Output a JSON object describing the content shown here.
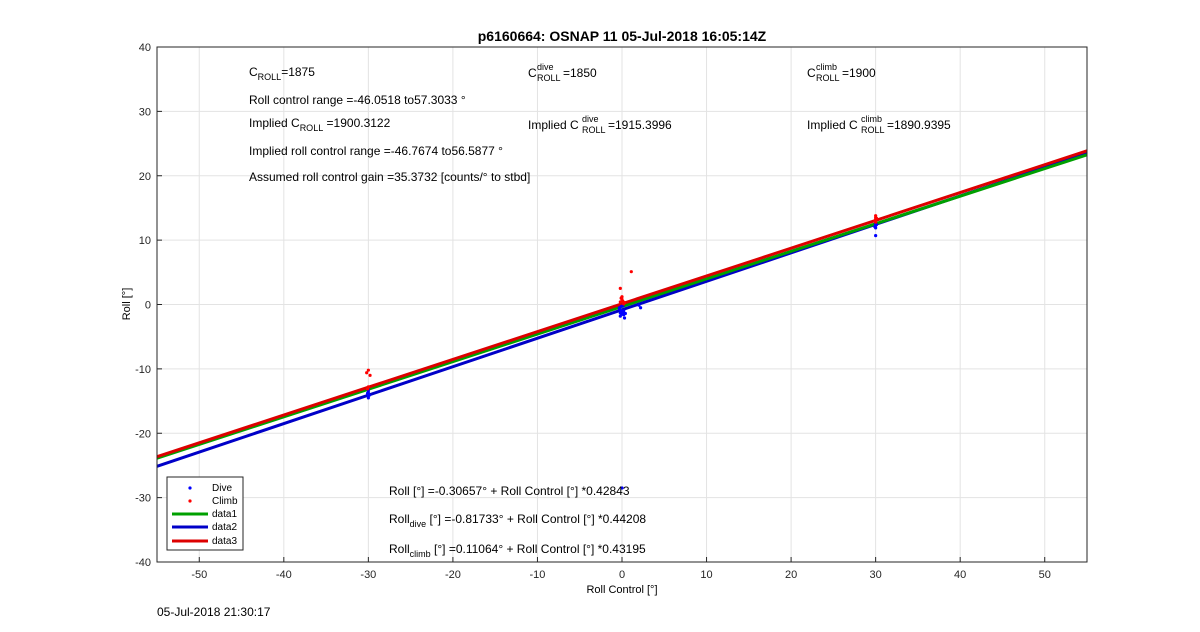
{
  "chart_data": {
    "type": "scatter",
    "title": "p6160664: OSNAP 11 05-Jul-2018 16:05:14Z",
    "xlabel": "Roll Control [°]",
    "ylabel": "Roll [°]",
    "xlim": [
      -55,
      55
    ],
    "ylim": [
      -40,
      40
    ],
    "xticks": [
      -50,
      -40,
      -30,
      -20,
      -10,
      0,
      10,
      20,
      30,
      40,
      50
    ],
    "yticks": [
      -40,
      -30,
      -20,
      -10,
      0,
      10,
      20,
      30,
      40
    ],
    "grid": true,
    "legend_position": "bottom-left",
    "legend": [
      {
        "label": "Dive",
        "kind": "marker",
        "color": "#0000ff"
      },
      {
        "label": "Climb",
        "kind": "marker",
        "color": "#ff0000"
      },
      {
        "label": "data1",
        "kind": "line",
        "color": "#00a000"
      },
      {
        "label": "data2",
        "kind": "line",
        "color": "#0000c8"
      },
      {
        "label": "data3",
        "kind": "line",
        "color": "#dd0000"
      }
    ],
    "series": [
      {
        "name": "Dive",
        "kind": "scatter",
        "color": "#0000ff",
        "points": [
          [
            -30,
            -13.3
          ],
          [
            -30,
            -13.6
          ],
          [
            -30,
            -13.9
          ],
          [
            -30,
            -14.2
          ],
          [
            -30,
            -14.5
          ],
          [
            -30.1,
            -13.8
          ],
          [
            -29.9,
            -14.1
          ],
          [
            -0.3,
            -0.5
          ],
          [
            -0.1,
            -0.9
          ],
          [
            0.1,
            -1.2
          ],
          [
            0,
            -1.5
          ],
          [
            -0.2,
            -1.8
          ],
          [
            0.3,
            -2.1
          ],
          [
            -0.3,
            -0.7
          ],
          [
            0.2,
            -1.0
          ],
          [
            0.4,
            -1.4
          ],
          [
            -0.1,
            -0.3
          ],
          [
            0,
            -1.1
          ],
          [
            0.2,
            -1.6
          ],
          [
            0.1,
            -0.2
          ],
          [
            -0.2,
            -1.3
          ],
          [
            2,
            -0.1
          ],
          [
            2.2,
            -0.5
          ],
          [
            0,
            -28.5
          ],
          [
            30,
            11.9
          ],
          [
            30,
            12.3
          ],
          [
            30,
            12.6
          ],
          [
            30,
            10.7
          ],
          [
            29.9,
            12.1
          ],
          [
            30.1,
            12.4
          ]
        ]
      },
      {
        "name": "Climb",
        "kind": "scatter",
        "color": "#ff0000",
        "points": [
          [
            -30,
            -10.2
          ],
          [
            -30.2,
            -10.6
          ],
          [
            -29.8,
            -11.0
          ],
          [
            -30,
            -12.8
          ],
          [
            -30.1,
            -13.1
          ],
          [
            -0.2,
            0.4
          ],
          [
            0,
            0.8
          ],
          [
            0.2,
            0.1
          ],
          [
            -0.1,
            1.0
          ],
          [
            0.1,
            0.5
          ],
          [
            -0.2,
            2.5
          ],
          [
            0,
            1.2
          ],
          [
            0.3,
            0.3
          ],
          [
            1.1,
            5.1
          ],
          [
            30,
            12.8
          ],
          [
            30,
            13.2
          ],
          [
            30,
            13.5
          ],
          [
            30,
            13.8
          ],
          [
            29.9,
            13.0
          ],
          [
            30.1,
            13.4
          ]
        ]
      },
      {
        "name": "data1",
        "kind": "line",
        "color": "#00a000",
        "intercept": -0.30657,
        "slope": 0.42843
      },
      {
        "name": "data2",
        "kind": "line",
        "color": "#0000c8",
        "intercept": -0.81733,
        "slope": 0.44208
      },
      {
        "name": "data3",
        "kind": "line",
        "color": "#dd0000",
        "intercept": 0.11064,
        "slope": 0.43195
      }
    ],
    "annotations": {
      "c_roll": {
        "main": "C",
        "sub": "ROLL",
        "rest": "=1875"
      },
      "c_roll_dive": {
        "main": "C",
        "sup": "dive",
        "sub": "ROLL",
        "rest": " =1850"
      },
      "c_roll_climb": {
        "main": "C",
        "sup": "climb",
        "sub": "ROLL",
        "rest": " =1900"
      },
      "roll_range": "Roll control range =-46.0518 to57.3033 °",
      "implied_c_roll": {
        "main": "Implied C",
        "sub": "ROLL",
        "rest": " =1900.3122"
      },
      "implied_c_roll_dive": {
        "main": "Implied C",
        "sup": "dive",
        "sub": "ROLL",
        "rest": " =1915.3996"
      },
      "implied_c_roll_climb": {
        "main": "Implied C",
        "sup": "climb",
        "sub": "ROLL",
        "rest": " =1890.9395"
      },
      "implied_range": "Implied roll control range =-46.7674 to56.5877 °",
      "assumed_gain": "Assumed roll control gain =35.3732 [counts/° to stbd]",
      "fit_all": "Roll [°] =-0.30657° + Roll Control [°] *0.42843",
      "fit_dive": {
        "main": "Roll",
        "sub": "dive",
        "rest": " [°] =-0.81733° + Roll Control [°] *0.44208"
      },
      "fit_climb": {
        "main": "Roll",
        "sub": "climb",
        "rest": " [°] =0.11064° + Roll Control [°] *0.43195"
      }
    }
  },
  "timestamp": "05-Jul-2018 21:30:17"
}
